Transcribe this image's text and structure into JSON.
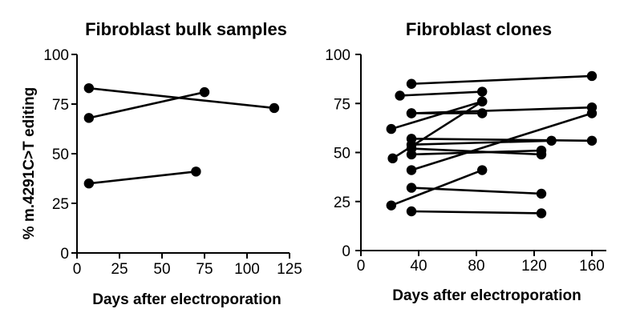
{
  "chart_data": [
    {
      "type": "scatter",
      "title": "Fibroblast bulk samples",
      "xlabel": "Days after electroporation",
      "ylabel": "% m.4291C>T editing",
      "xlim": [
        0,
        125
      ],
      "ylim": [
        0,
        100
      ],
      "xticks": [
        "0",
        "25",
        "50",
        "75",
        "100",
        "125"
      ],
      "yticks": [
        "0",
        "25",
        "50",
        "75",
        "100"
      ],
      "grid": false,
      "series": [
        {
          "x": [
            7,
            116
          ],
          "y": [
            83,
            73
          ]
        },
        {
          "x": [
            7,
            75
          ],
          "y": [
            68,
            81
          ]
        },
        {
          "x": [
            7,
            70
          ],
          "y": [
            35,
            41
          ]
        }
      ]
    },
    {
      "type": "scatter",
      "title": "Fibroblast clones",
      "xlabel": "Days after electroporation",
      "ylabel": "",
      "xlim": [
        0,
        170
      ],
      "ylim": [
        0,
        100
      ],
      "xticks": [
        "0",
        "40",
        "80",
        "120",
        "160"
      ],
      "yticks": [
        "0",
        "25",
        "50",
        "75",
        "100"
      ],
      "grid": false,
      "series": [
        {
          "x": [
            35,
            160
          ],
          "y": [
            85,
            89
          ]
        },
        {
          "x": [
            27,
            84
          ],
          "y": [
            79,
            81
          ]
        },
        {
          "x": [
            35,
            84
          ],
          "y": [
            70,
            70
          ]
        },
        {
          "x": [
            35,
            160
          ],
          "y": [
            70,
            73
          ]
        },
        {
          "x": [
            21,
            84
          ],
          "y": [
            62,
            76
          ]
        },
        {
          "x": [
            35,
            160
          ],
          "y": [
            57,
            56
          ]
        },
        {
          "x": [
            35,
            132
          ],
          "y": [
            54,
            56
          ]
        },
        {
          "x": [
            35,
            125
          ],
          "y": [
            52,
            49
          ]
        },
        {
          "x": [
            35,
            125
          ],
          "y": [
            49,
            51
          ]
        },
        {
          "x": [
            22,
            84
          ],
          "y": [
            47,
            76
          ]
        },
        {
          "x": [
            35,
            160
          ],
          "y": [
            41,
            70
          ]
        },
        {
          "x": [
            21,
            84
          ],
          "y": [
            23,
            41
          ]
        },
        {
          "x": [
            35,
            125
          ],
          "y": [
            32,
            29
          ]
        },
        {
          "x": [
            35,
            125
          ],
          "y": [
            20,
            19
          ]
        }
      ]
    }
  ]
}
